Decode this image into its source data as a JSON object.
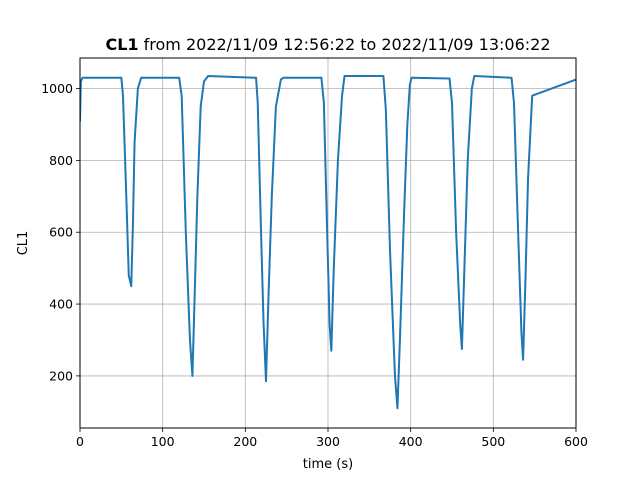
{
  "chart_data": {
    "type": "line",
    "title": "CL1 from 2022/11/09 12:56:22 to 2022/11/09 13:06:22",
    "title_bold_part": "CL1",
    "title_rest": " from 2022/11/09 12:56:22 to 2022/11/09 13:06:22",
    "xlabel": "time (s)",
    "ylabel": "CL1",
    "xlim": [
      0,
      600
    ],
    "ylim": [
      55,
      1085
    ],
    "xticks": [
      0,
      100,
      200,
      300,
      400,
      500,
      600
    ],
    "yticks": [
      200,
      400,
      600,
      800,
      1000
    ],
    "grid": true,
    "color": "#1f77b4",
    "series": [
      {
        "x": [
          0,
          1,
          3,
          50,
          52,
          56,
          59,
          62,
          64,
          66,
          70,
          74,
          120,
          123,
          128,
          133,
          136,
          139,
          142,
          146,
          150,
          155,
          213,
          215,
          219,
          222,
          225,
          228,
          232,
          237,
          243,
          246,
          292,
          295,
          299,
          302,
          304,
          307,
          312,
          317,
          320,
          367,
          370,
          375,
          381,
          384,
          387,
          392,
          396,
          399,
          401,
          447,
          450,
          455,
          460,
          462,
          465,
          469,
          474,
          477,
          522,
          525,
          530,
          534,
          536,
          539,
          542,
          547,
          600
        ],
        "y": [
          910,
          1020,
          1030,
          1030,
          980,
          700,
          480,
          450,
          620,
          850,
          1000,
          1030,
          1030,
          980,
          600,
          300,
          200,
          450,
          700,
          950,
          1020,
          1035,
          1030,
          960,
          600,
          350,
          185,
          420,
          700,
          950,
          1025,
          1030,
          1030,
          960,
          600,
          340,
          270,
          500,
          800,
          980,
          1035,
          1035,
          940,
          550,
          200,
          110,
          300,
          650,
          900,
          1010,
          1030,
          1028,
          960,
          600,
          340,
          275,
          500,
          800,
          1000,
          1035,
          1030,
          960,
          600,
          320,
          245,
          480,
          750,
          980,
          1025
        ]
      }
    ]
  }
}
